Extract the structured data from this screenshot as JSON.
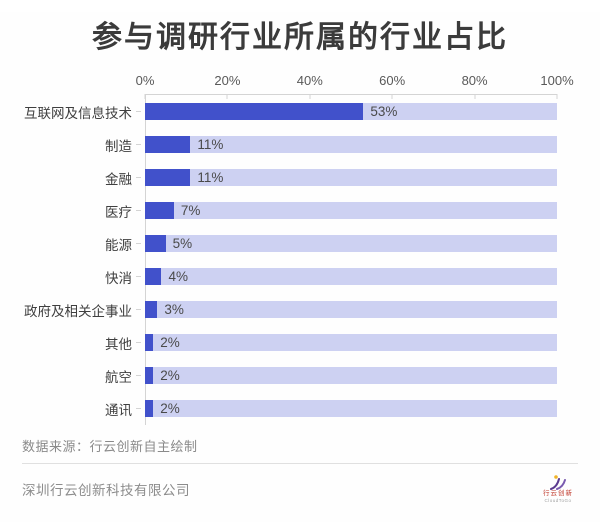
{
  "chart_data": {
    "type": "bar",
    "orientation": "horizontal",
    "title": "参与调研行业所属的行业占比",
    "categories": [
      "互联网及信息技术",
      "制造",
      "金融",
      "医疗",
      "能源",
      "快消",
      "政府及相关企事业",
      "其他",
      "航空",
      "通讯"
    ],
    "values": [
      53,
      11,
      11,
      7,
      5,
      4,
      3,
      2,
      2,
      2
    ],
    "value_labels": [
      "53%",
      "11%",
      "11%",
      "7%",
      "5%",
      "4%",
      "3%",
      "2%",
      "2%",
      "2%"
    ],
    "xlabel": "",
    "ylabel": "",
    "xlim": [
      0,
      100
    ],
    "x_ticks": [
      "0%",
      "20%",
      "40%",
      "60%",
      "80%",
      "100%"
    ],
    "grid": false,
    "legend": false,
    "bar_color": "#4151cb",
    "track_color": "#cdd1f2"
  },
  "footer": {
    "source": "数据来源：行云创新自主绘制",
    "company": "深圳行云创新科技有限公司"
  },
  "logo": {
    "brand": "行云创新",
    "sub": "CloudToGo"
  },
  "colors": {
    "axis_line": "#d4d4d4",
    "title_text": "#3b3b3b",
    "logo_yellow": "#f0b429",
    "logo_purple": "#5b3a8e",
    "logo_red": "#c0392b"
  }
}
